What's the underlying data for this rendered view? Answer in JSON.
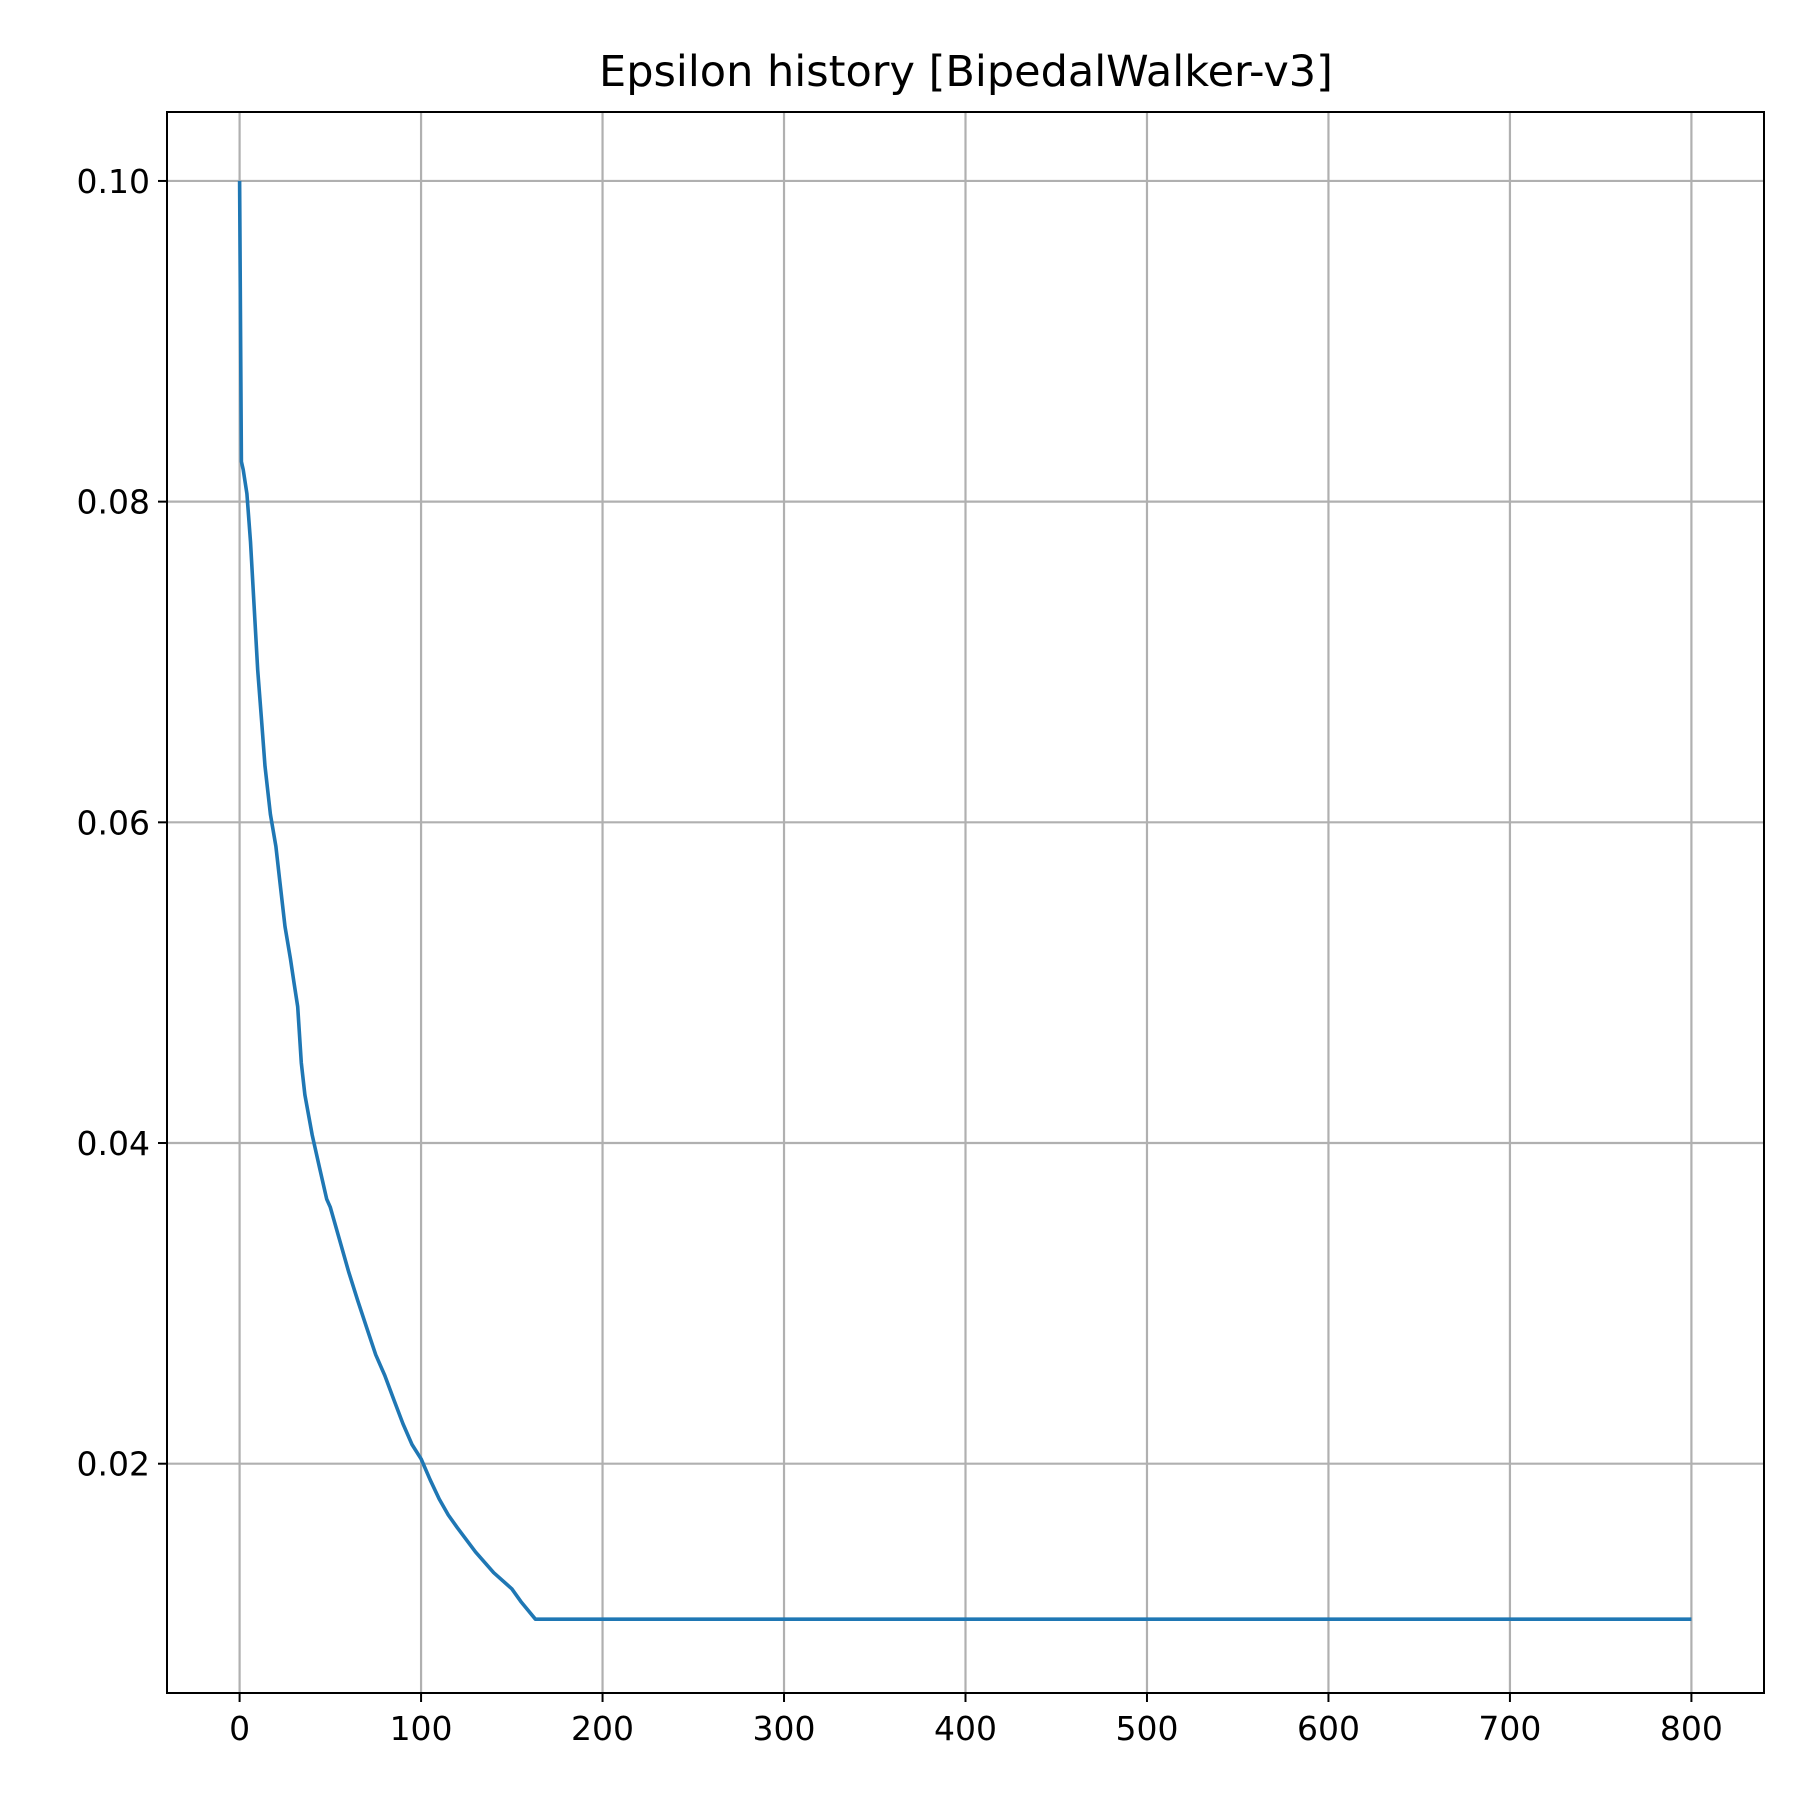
{
  "chart_data": {
    "type": "line",
    "title": "Epsilon history [BipedalWalker-v3]",
    "xlabel": "",
    "ylabel": "",
    "xlim": [
      -40,
      840
    ],
    "ylim": [
      0.0057,
      0.1043
    ],
    "xticks": [
      0,
      100,
      200,
      300,
      400,
      500,
      600,
      700,
      800
    ],
    "xtick_labels": [
      "0",
      "100",
      "200",
      "300",
      "400",
      "500",
      "600",
      "700",
      "800"
    ],
    "yticks": [
      0.02,
      0.04,
      0.06,
      0.08,
      0.1
    ],
    "ytick_labels": [
      "0.02",
      "0.04",
      "0.06",
      "0.08",
      "0.10"
    ],
    "grid": true,
    "series": [
      {
        "color": "#1f77b4",
        "x": [
          0,
          1,
          2,
          4,
          6,
          8,
          10,
          12,
          14,
          17,
          20,
          22,
          25,
          28,
          30,
          32,
          34,
          36,
          40,
          44,
          48,
          50,
          55,
          60,
          65,
          70,
          75,
          80,
          85,
          90,
          95,
          100,
          105,
          110,
          115,
          120,
          130,
          140,
          150,
          155,
          163,
          200,
          300,
          400,
          500,
          600,
          700,
          800
        ],
        "y": [
          0.1,
          0.0825,
          0.082,
          0.0805,
          0.0775,
          0.0735,
          0.0695,
          0.0665,
          0.0635,
          0.0605,
          0.0585,
          0.0565,
          0.0535,
          0.0515,
          0.05,
          0.0485,
          0.045,
          0.043,
          0.0405,
          0.0385,
          0.0365,
          0.036,
          0.034,
          0.032,
          0.0302,
          0.0285,
          0.0268,
          0.0255,
          0.024,
          0.0225,
          0.0212,
          0.0203,
          0.019,
          0.0178,
          0.0168,
          0.016,
          0.0145,
          0.0132,
          0.0122,
          0.0114,
          0.0103,
          0.0103,
          0.0103,
          0.0103,
          0.0103,
          0.0103,
          0.0103,
          0.0103
        ]
      }
    ]
  }
}
